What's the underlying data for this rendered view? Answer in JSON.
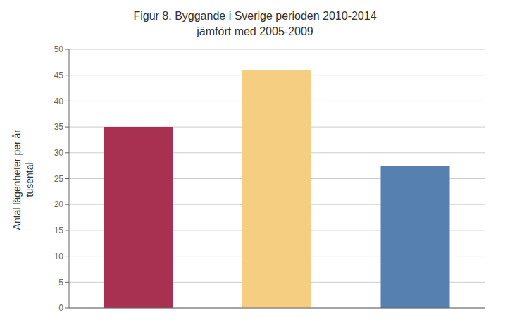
{
  "chart_data": {
    "type": "bar",
    "title": "Figur 8. Byggande i Sverige perioden 2010-2014\njämfört med 2005-2009",
    "ylabel": "Antal lägenheter per år\ntusental",
    "categories": [
      null,
      null,
      null
    ],
    "values": [
      35,
      46,
      27.5
    ],
    "colors": [
      "#a83050",
      "#f5ce82",
      "#5580b0"
    ],
    "ylim": [
      0,
      50
    ],
    "yticks": [
      0,
      5,
      10,
      15,
      20,
      25,
      30,
      35,
      40,
      45,
      50
    ],
    "grid": true,
    "tick_labels": "y"
  }
}
